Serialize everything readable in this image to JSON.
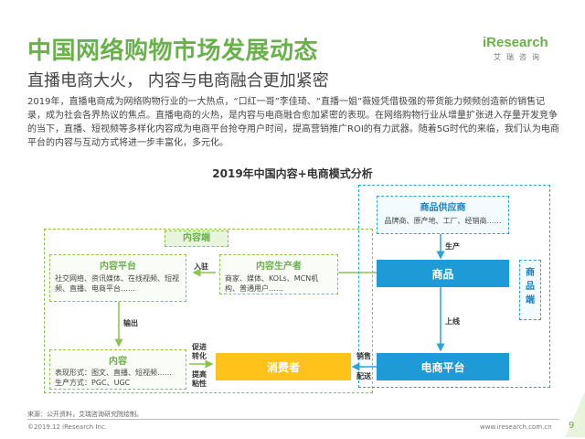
{
  "header": {
    "title": "中国网络购物市场发展动态",
    "subtitle": "直播电商大火， 内容与电商融合更加紧密"
  },
  "logo": {
    "main": "iResearch",
    "sub": "艾瑞咨询"
  },
  "intro": {
    "text": "2019年，直播电商成为网络购物行业的一大热点，“口红一哥”李佳琦、“直播一姐”薇娅凭借极强的带货能力频频创造新的销售记录，成为社会各界热议的焦点。直播电商的火热，是内容与电商融合愈加紧密的表现。在网络购物行业从增量扩张进入存量开发竞争的当下，直播、短视频等多样化内容成为电商平台抢夺用户时间，提高营销推广ROI的有力武器。随着5G时代的来临，我们认为电商平台的内容与互动方式将进一步丰富化，多元化。"
  },
  "diagram": {
    "title": "2019年中国内容+电商模式分析",
    "content_side_label": "内容端",
    "product_side_label": "商品端",
    "content_platform": {
      "title": "内容平台",
      "desc": "社交网络、资讯媒体、在线视频、短视频、直播、电商平台……"
    },
    "content_producer": {
      "title": "内容生产者",
      "desc": "商家、媒体、KOLs、MCN机构、普通用户……"
    },
    "content": {
      "title": "内容",
      "desc_forms": "表现形式：图文、直播、短视频……",
      "desc_producers": "生产方式：PGC、UGC"
    },
    "supplier": {
      "title": "商品供应商",
      "desc": "品牌商、原产地、工厂、经销商……"
    },
    "product": "商品",
    "ecommerce_platform": "电商平台",
    "consumer": "消费者",
    "arrows": {
      "enter": "入驻",
      "output": "输出",
      "produce": "生产",
      "listing": "上线",
      "boost_conversion": "促进转化",
      "improve_stickiness": "提高粘性",
      "sales": "销售",
      "delivery": "配送"
    }
  },
  "footer": {
    "source": "来源：公开资料，艾瑞咨询研究院绘制。",
    "copyright": "©2019.12 iResearch Inc.",
    "url": "www.iresearch.com.cn",
    "page": "9"
  }
}
